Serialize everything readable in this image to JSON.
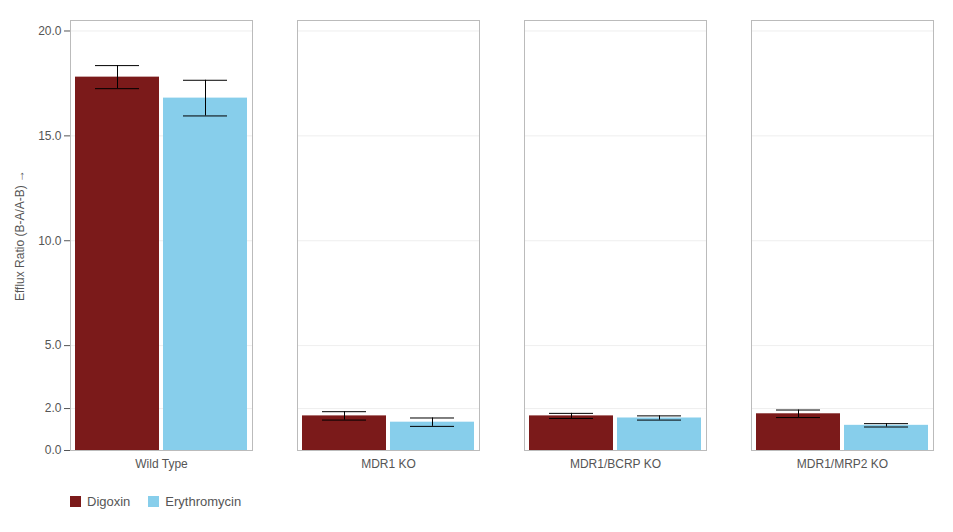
{
  "chart_data": {
    "type": "bar",
    "categories": [
      "Wild Type",
      "MDR1 KO",
      "MDR1/BCRP KO",
      "MDR1/MRP2 KO"
    ],
    "series": [
      {
        "name": "Digoxin",
        "color": "#7B1A1A",
        "values": [
          17.8,
          1.65,
          1.65,
          1.75
        ],
        "errors": [
          0.55,
          0.2,
          0.12,
          0.18
        ]
      },
      {
        "name": "Erythromycin",
        "color": "#87CEEB",
        "values": [
          16.8,
          1.35,
          1.55,
          1.2
        ],
        "errors": [
          0.85,
          0.2,
          0.1,
          0.08
        ]
      }
    ],
    "ylabel": "Efflux Ratio (B-A/A-B)",
    "ylim": [
      0,
      20.5
    ],
    "yticks": [
      {
        "value": 0.0,
        "label": "0.0"
      },
      {
        "value": 2.0,
        "label": "2.0"
      },
      {
        "value": 5.0,
        "label": "5.0"
      },
      {
        "value": 10.0,
        "label": "10.0"
      },
      {
        "value": 15.0,
        "label": "15.0"
      },
      {
        "value": 20.0,
        "label": "20.0"
      }
    ],
    "grid": true,
    "legend": "bottom"
  }
}
